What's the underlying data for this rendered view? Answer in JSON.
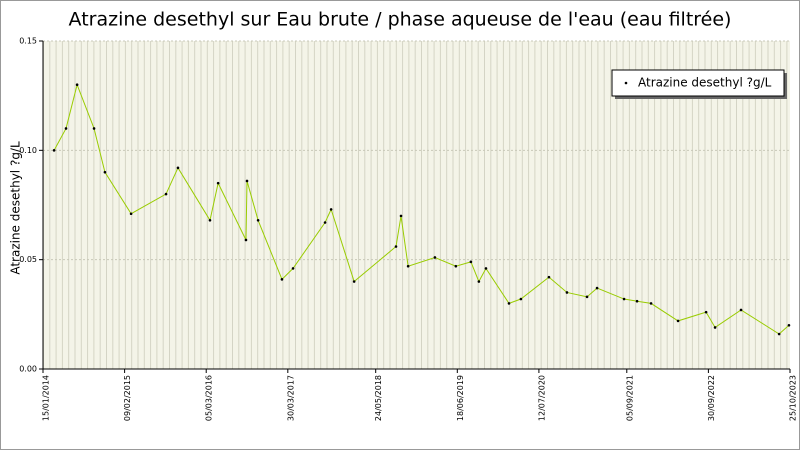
{
  "chart_data": {
    "type": "line",
    "title": "Atrazine desethyl sur Eau brute / phase aqueuse de l'eau (eau filtrée)",
    "y_label": "Atrazine desethyl ?g/L",
    "x": [
      "09/03/2014",
      "05/05/2014",
      "27/06/2014",
      "16/09/2014",
      "07/11/2014",
      "12/03/2015",
      "26/08/2015",
      "22/10/2015",
      "23/03/2016",
      "01/05/2016",
      "11/09/2016",
      "16/09/2016",
      "08/11/2016",
      "02/03/2017",
      "24/04/2017",
      "24/09/2017",
      "23/10/2017",
      "10/02/2018",
      "29/08/2018",
      "22/09/2018",
      "26/10/2018",
      "03/03/2019",
      "11/06/2019",
      "22/08/2019",
      "29/09/2019",
      "02/11/2019",
      "20/02/2020",
      "17/04/2020",
      "29/08/2020",
      "23/11/2020",
      "27/02/2021",
      "16/04/2021",
      "23/08/2021",
      "24/10/2021",
      "30/12/2021",
      "08/05/2022",
      "19/09/2022",
      "01/11/2022",
      "05/03/2023",
      "03/09/2023",
      "20/10/2023"
    ],
    "series": [
      {
        "name": "Atrazine desethyl ?g/L",
        "color": "#99cc00",
        "values": [
          0.1,
          0.11,
          0.13,
          0.11,
          0.09,
          0.071,
          0.08,
          0.092,
          0.068,
          0.085,
          0.059,
          0.086,
          0.068,
          0.041,
          0.046,
          0.067,
          0.073,
          0.04,
          0.056,
          0.07,
          0.047,
          0.051,
          0.047,
          0.049,
          0.04,
          0.046,
          0.03,
          0.032,
          0.042,
          0.035,
          0.033,
          0.037,
          0.032,
          0.031,
          0.03,
          0.022,
          0.026,
          0.019,
          0.027,
          0.016,
          0.02
        ]
      }
    ],
    "xlim": [
      "15/01/2014",
      "25/10/2023"
    ],
    "xticks": [
      "15/01/2014",
      "09/02/2015",
      "05/03/2016",
      "30/03/2017",
      "24/05/2018",
      "18/06/2019",
      "12/07/2020",
      "05/09/2021",
      "30/09/2022",
      "25/10/2023"
    ],
    "ylim": [
      0,
      0.15
    ],
    "yticks": [
      {
        "value": 0,
        "label": "0.00"
      },
      0.05,
      {
        "value": 0.1,
        "label": "0.10"
      },
      0.15
    ],
    "grid": true,
    "legend": "top-right"
  }
}
